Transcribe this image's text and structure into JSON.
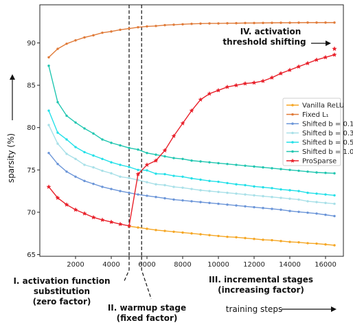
{
  "chart_data": {
    "type": "line",
    "ylabel": "sparsity (%)",
    "xlabel": "training steps",
    "xlim": [
      0,
      17000
    ],
    "ylim": [
      64.8,
      94.5
    ],
    "xticks": [
      2000,
      4000,
      6000,
      8000,
      10000,
      12000,
      14000,
      16000
    ],
    "yticks": [
      65,
      70,
      75,
      80,
      85,
      90
    ],
    "legend_position": "right",
    "phase_lines": [
      5000,
      5700
    ],
    "annotations": {
      "stage1_line1": "I. activation function",
      "stage1_line2": "substitution",
      "stage1_line3": "(zero factor)",
      "stage2_line1": "II. warmup stage",
      "stage2_line2": "(fixed factor)",
      "stage3_line1": "III. incremental stages",
      "stage3_line2": "(increasing factor)",
      "stage4_line1": "IV. activation",
      "stage4_line2": "threshold shifting"
    },
    "series": [
      {
        "name": "Vanilla ReLU",
        "color": "#f5a623",
        "marker": "dot",
        "x": [
          5000,
          5500,
          6000,
          6500,
          7000,
          7500,
          8000,
          8500,
          9000,
          9500,
          10000,
          10500,
          11000,
          11500,
          12000,
          12500,
          13000,
          13500,
          14000,
          14500,
          15000,
          15500,
          16000,
          16500
        ],
        "y": [
          68.35,
          68.2,
          68.05,
          67.9,
          67.8,
          67.7,
          67.6,
          67.5,
          67.4,
          67.3,
          67.2,
          67.1,
          67.05,
          66.95,
          66.85,
          66.75,
          66.7,
          66.6,
          66.5,
          66.45,
          66.35,
          66.3,
          66.2,
          66.1
        ]
      },
      {
        "name": "Fixed L₁",
        "color": "#e07b39",
        "marker": "dot",
        "x": [
          500,
          1000,
          1500,
          2000,
          2500,
          3000,
          3500,
          4000,
          4500,
          5000,
          5500,
          6000,
          6500,
          7000,
          7500,
          8000,
          8500,
          9000,
          9500,
          10000,
          10500,
          11000,
          11500,
          12000,
          12500,
          13000,
          13500,
          14000,
          14500,
          15000,
          15500,
          16000,
          16500
        ],
        "y": [
          88.3,
          89.3,
          89.9,
          90.3,
          90.65,
          90.9,
          91.2,
          91.35,
          91.55,
          91.7,
          91.85,
          91.95,
          92.0,
          92.1,
          92.15,
          92.2,
          92.25,
          92.28,
          92.3,
          92.3,
          92.32,
          92.33,
          92.35,
          92.35,
          92.36,
          92.37,
          92.38,
          92.38,
          92.39,
          92.4,
          92.4,
          92.4,
          92.4
        ]
      },
      {
        "name": "Shifted b = 0.1",
        "color": "#6b95d8",
        "marker": "dot",
        "x": [
          500,
          1000,
          1500,
          2000,
          2500,
          3000,
          3500,
          4000,
          4500,
          5000,
          5500,
          6000,
          6500,
          7000,
          7500,
          8000,
          8500,
          9000,
          9500,
          10000,
          10500,
          11000,
          11500,
          12000,
          12500,
          13000,
          13500,
          14000,
          14500,
          15000,
          15500,
          16000,
          16500
        ],
        "y": [
          77.0,
          75.7,
          74.8,
          74.2,
          73.7,
          73.35,
          73.0,
          72.75,
          72.5,
          72.3,
          72.1,
          71.95,
          71.8,
          71.65,
          71.5,
          71.4,
          71.3,
          71.2,
          71.1,
          71.0,
          70.9,
          70.8,
          70.7,
          70.6,
          70.5,
          70.4,
          70.3,
          70.15,
          70.05,
          69.95,
          69.85,
          69.7,
          69.55
        ]
      },
      {
        "name": "Shifted b = 0.3",
        "color": "#a8e0e8",
        "marker": "dot",
        "x": [
          500,
          1000,
          1500,
          2000,
          2500,
          3000,
          3500,
          4000,
          4500,
          5000,
          5500,
          6000,
          6500,
          7000,
          7500,
          8000,
          8500,
          9000,
          9500,
          10000,
          10500,
          11000,
          11500,
          12000,
          12500,
          13000,
          13500,
          14000,
          14500,
          15000,
          15500,
          16000,
          16500
        ],
        "y": [
          80.3,
          78.1,
          76.9,
          76.3,
          75.6,
          75.3,
          74.9,
          74.6,
          74.2,
          74.05,
          73.8,
          73.55,
          73.3,
          73.2,
          73.0,
          72.9,
          72.75,
          72.6,
          72.5,
          72.4,
          72.3,
          72.2,
          72.1,
          72.0,
          71.9,
          71.8,
          71.7,
          71.6,
          71.5,
          71.3,
          71.2,
          71.1,
          71.0
        ]
      },
      {
        "name": "Shifted b = 0.5",
        "color": "#22e0e8",
        "marker": "dot",
        "x": [
          500,
          1000,
          1500,
          2000,
          2500,
          3000,
          3500,
          4000,
          4500,
          5000,
          5500,
          6000,
          6500,
          7000,
          7500,
          8000,
          8500,
          9000,
          9500,
          10000,
          10500,
          11000,
          11500,
          12000,
          12500,
          13000,
          13500,
          14000,
          14500,
          15000,
          15500,
          16000,
          16500
        ],
        "y": [
          82.0,
          79.4,
          78.6,
          77.7,
          77.1,
          76.7,
          76.3,
          75.9,
          75.6,
          75.35,
          75.0,
          74.95,
          74.55,
          74.5,
          74.3,
          74.2,
          74.0,
          73.85,
          73.7,
          73.6,
          73.45,
          73.3,
          73.2,
          73.05,
          72.95,
          72.85,
          72.7,
          72.6,
          72.5,
          72.3,
          72.2,
          72.1,
          72.0
        ]
      },
      {
        "name": "Shifted b = 1.0",
        "color": "#20c6b0",
        "marker": "dot",
        "x": [
          500,
          1000,
          1500,
          2000,
          2500,
          3000,
          3500,
          4000,
          4500,
          5000,
          5500,
          6000,
          6500,
          7000,
          7500,
          8000,
          8500,
          9000,
          9500,
          10000,
          10500,
          11000,
          11500,
          12000,
          12500,
          13000,
          13500,
          14000,
          14500,
          15000,
          15500,
          16000,
          16500
        ],
        "y": [
          87.3,
          83.0,
          81.4,
          80.6,
          79.9,
          79.3,
          78.6,
          78.2,
          77.9,
          77.6,
          77.4,
          77.0,
          76.8,
          76.6,
          76.4,
          76.3,
          76.1,
          76.0,
          75.9,
          75.8,
          75.7,
          75.6,
          75.5,
          75.4,
          75.3,
          75.2,
          75.1,
          75.0,
          74.9,
          74.8,
          74.7,
          74.65,
          74.6
        ]
      },
      {
        "name": "ProSparse",
        "color": "#e8202a",
        "marker": "star",
        "x": [
          500,
          1000,
          1500,
          2000,
          2500,
          3000,
          3500,
          4000,
          4500,
          5000,
          5500,
          6000,
          6500,
          7000,
          7500,
          8000,
          8500,
          9000,
          9500,
          10000,
          10500,
          11000,
          11500,
          12000,
          12500,
          13000,
          13500,
          14000,
          14500,
          15000,
          15500,
          16000,
          16500
        ],
        "y": [
          73.0,
          71.7,
          70.9,
          70.3,
          69.85,
          69.4,
          69.1,
          68.85,
          68.6,
          68.4,
          74.5,
          75.6,
          76.1,
          77.3,
          79.0,
          80.5,
          82.0,
          83.3,
          84.0,
          84.4,
          84.8,
          85.0,
          85.2,
          85.3,
          85.5,
          85.9,
          86.4,
          86.8,
          87.2,
          87.6,
          88.0,
          88.3,
          88.6
        ]
      }
    ],
    "threshold_point": {
      "x": 16500,
      "y": 89.3
    }
  }
}
